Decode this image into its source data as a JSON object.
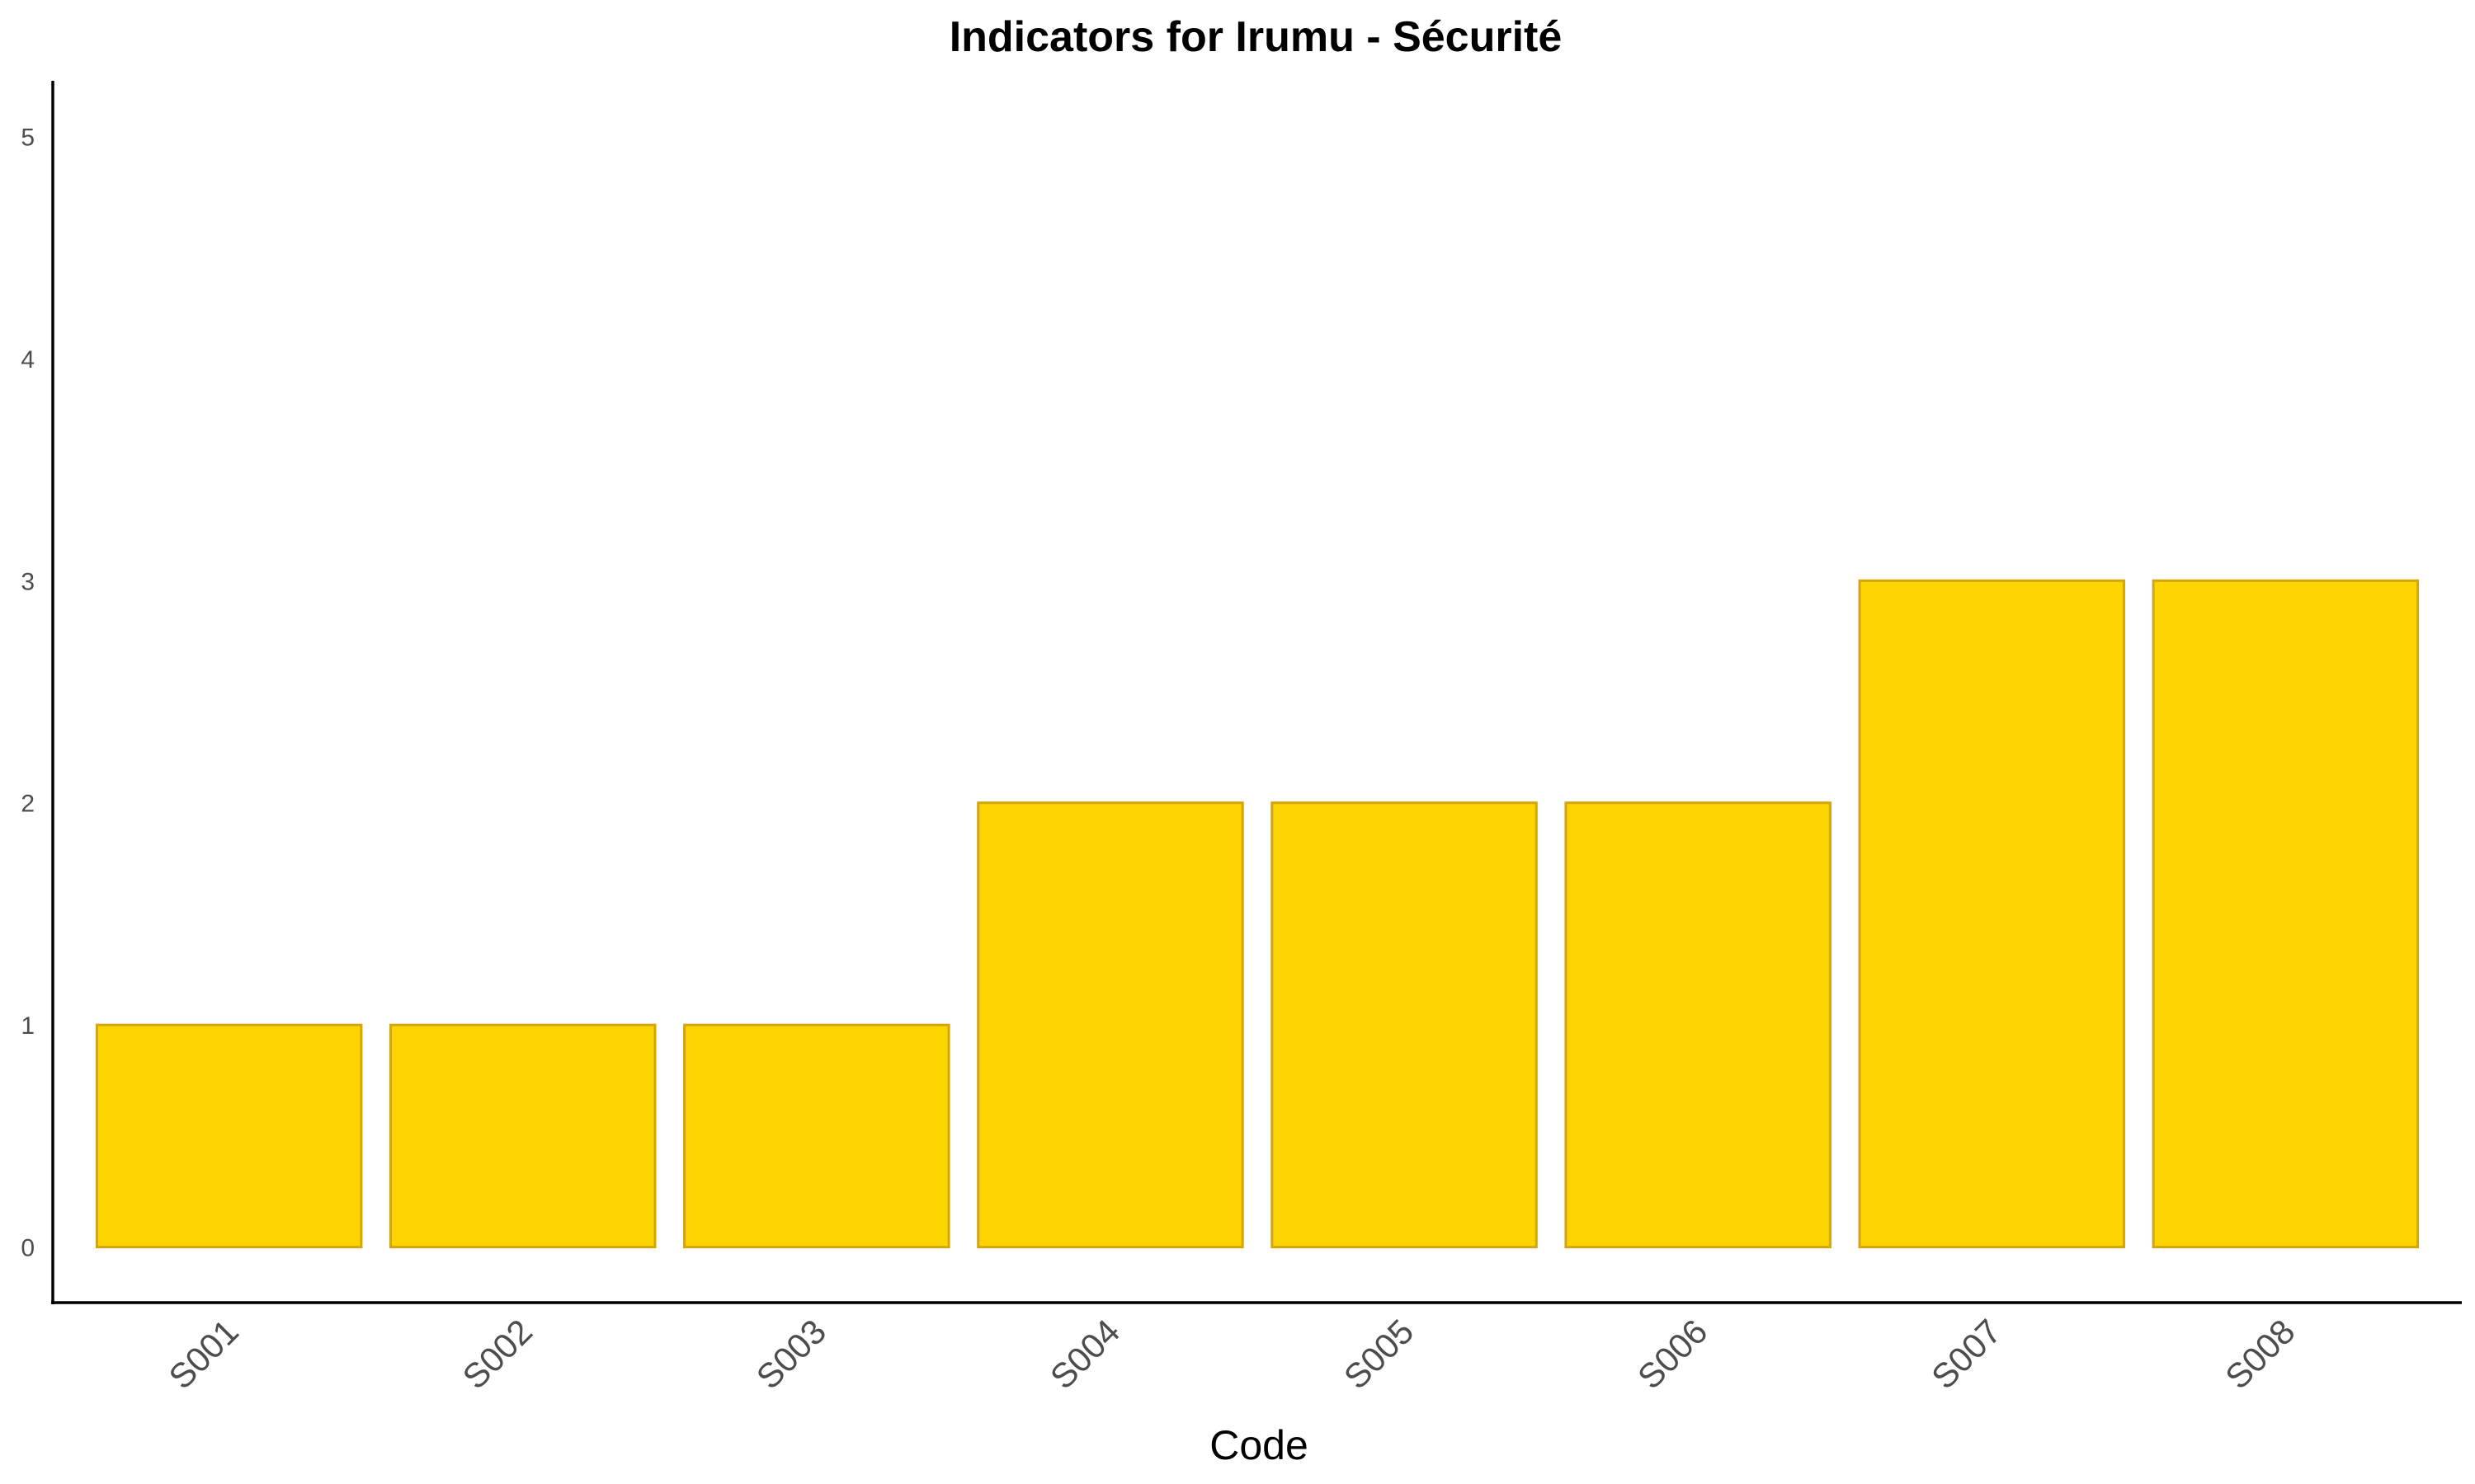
{
  "chart_data": {
    "type": "bar",
    "title": "Indicators for Irumu - Sécurité",
    "xlabel": "Code",
    "ylabel": "",
    "categories": [
      "S001",
      "S002",
      "S003",
      "S004",
      "S005",
      "S006",
      "S007",
      "S008"
    ],
    "values": [
      1,
      1,
      1,
      2,
      2,
      2,
      3,
      3
    ],
    "y_ticks": [
      "0",
      "1",
      "2",
      "3",
      "4",
      "5"
    ],
    "ylim": [
      -0.25,
      5.25
    ],
    "grid": false,
    "legend": "none",
    "bar_fill": "#FCD500",
    "bar_edge": "#D4A50E"
  }
}
